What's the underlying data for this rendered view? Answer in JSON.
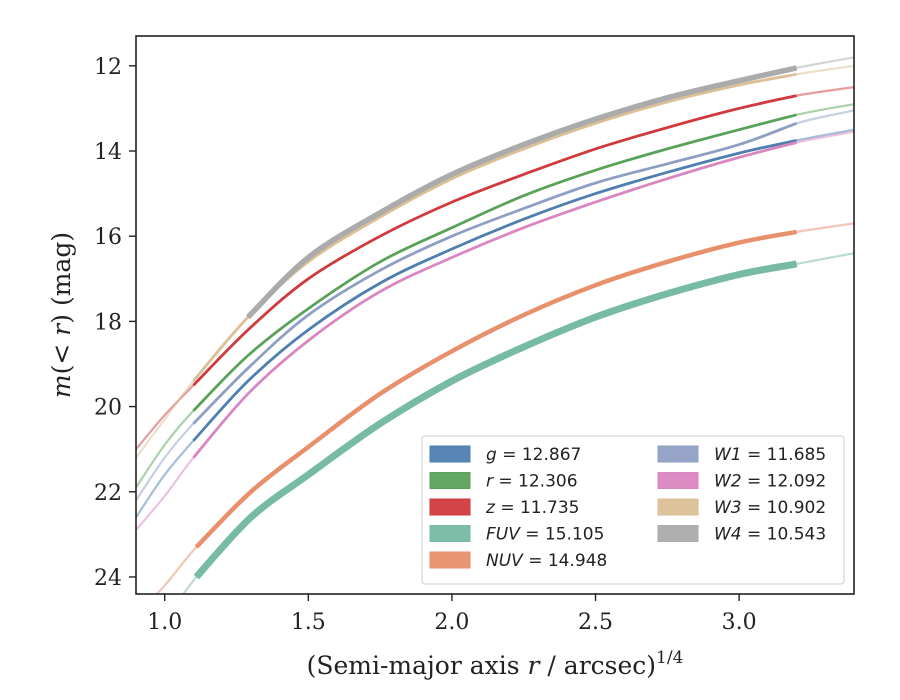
{
  "chart_data": {
    "type": "line",
    "xlabel": "(Semi-major axis r / arcsec)1/4",
    "ylabel": "m(< r) (mag)",
    "xlim": [
      0.9,
      3.4
    ],
    "ylim": [
      24.4,
      11.3
    ],
    "y_inverted": true,
    "grid": false,
    "legend_placement": "lower-right",
    "xticks": [
      "1.0",
      "1.5",
      "2.0",
      "2.5",
      "3.0"
    ],
    "xtick_values": [
      1.0,
      1.5,
      2.0,
      2.5,
      3.0
    ],
    "yticks": [
      "12",
      "14",
      "16",
      "18",
      "20",
      "22",
      "24"
    ],
    "ytick_values": [
      12,
      14,
      16,
      18,
      20,
      22,
      24
    ],
    "series": [
      {
        "name": "g = 12.867",
        "band": "g",
        "mag": "12.867",
        "color": "#4e7fb0",
        "x_start": 0.9,
        "x_solid_start": 1.29,
        "x_solid_end": 3.2,
        "x_end": 3.4,
        "x": [
          0.9,
          1.0,
          1.1,
          1.29,
          1.5,
          1.75,
          2.0,
          2.25,
          2.5,
          2.75,
          3.0,
          3.2,
          3.4
        ],
        "y": [
          22.6,
          21.6,
          20.8,
          19.4,
          18.2,
          17.1,
          16.3,
          15.6,
          15.0,
          14.5,
          14.05,
          13.75,
          13.5
        ]
      },
      {
        "name": "r = 12.306",
        "band": "r",
        "mag": "12.306",
        "color": "#5aa25a",
        "x": [
          0.9,
          1.0,
          1.1,
          1.29,
          1.5,
          1.75,
          2.0,
          2.25,
          2.5,
          2.75,
          3.0,
          3.2,
          3.4
        ],
        "y": [
          21.9,
          20.9,
          20.1,
          18.8,
          17.7,
          16.6,
          15.8,
          15.05,
          14.45,
          13.95,
          13.5,
          13.15,
          12.9
        ]
      },
      {
        "name": "z = 11.735",
        "band": "z",
        "mag": "11.735",
        "color": "#d03a3e",
        "x": [
          0.9,
          1.0,
          1.1,
          1.29,
          1.5,
          1.75,
          2.0,
          2.25,
          2.5,
          2.75,
          3.0,
          3.2,
          3.4
        ],
        "y": [
          21.0,
          20.2,
          19.5,
          18.2,
          17.0,
          16.0,
          15.2,
          14.55,
          13.95,
          13.45,
          13.0,
          12.7,
          12.5
        ]
      },
      {
        "name": "FUV = 15.105",
        "band": "FUV",
        "mag": "15.105",
        "color": "#77bba3",
        "x": [
          0.9,
          1.0,
          1.11,
          1.3,
          1.5,
          1.75,
          2.0,
          2.25,
          2.5,
          2.75,
          3.0,
          3.2,
          3.4
        ],
        "y": [
          25.6,
          25.0,
          24.0,
          22.6,
          21.6,
          20.4,
          19.4,
          18.6,
          17.9,
          17.35,
          16.9,
          16.65,
          16.4
        ]
      },
      {
        "name": "NUV = 14.948",
        "band": "NUV",
        "mag": "14.948",
        "color": "#e8906c",
        "x": [
          0.9,
          1.0,
          1.11,
          1.3,
          1.5,
          1.75,
          2.0,
          2.25,
          2.5,
          2.75,
          3.0,
          3.2,
          3.4
        ],
        "y": [
          24.9,
          24.2,
          23.3,
          22.0,
          20.95,
          19.7,
          18.7,
          17.85,
          17.15,
          16.6,
          16.15,
          15.9,
          15.7
        ]
      },
      {
        "name": "W1 = 11.685",
        "band": "W1",
        "mag": "11.685",
        "color": "#8f9fc4",
        "x": [
          0.9,
          1.0,
          1.1,
          1.29,
          1.5,
          1.75,
          2.0,
          2.25,
          2.5,
          2.75,
          3.0,
          3.2,
          3.4
        ],
        "y": [
          22.2,
          21.2,
          20.4,
          19.1,
          17.85,
          16.8,
          16.0,
          15.35,
          14.75,
          14.3,
          13.85,
          13.35,
          13.05
        ]
      },
      {
        "name": "W2 = 12.092",
        "band": "W2",
        "mag": "12.092",
        "color": "#da86c0",
        "x": [
          0.9,
          1.0,
          1.1,
          1.29,
          1.5,
          1.75,
          2.0,
          2.25,
          2.5,
          2.75,
          3.0,
          3.2,
          3.4
        ],
        "y": [
          22.9,
          22.1,
          21.2,
          19.7,
          18.45,
          17.3,
          16.5,
          15.8,
          15.2,
          14.65,
          14.15,
          13.8,
          13.55
        ]
      },
      {
        "name": "W3 = 10.902",
        "band": "W3",
        "mag": "10.902",
        "color": "#dcbf95",
        "x": [
          0.9,
          1.0,
          1.1,
          1.29,
          1.5,
          1.75,
          2.0,
          2.25,
          2.5,
          2.75,
          3.0,
          3.2,
          3.4
        ],
        "y": [
          21.2,
          20.3,
          19.4,
          17.9,
          16.6,
          15.55,
          14.65,
          13.95,
          13.35,
          12.85,
          12.45,
          12.2,
          12.0
        ]
      },
      {
        "name": "W4 = 10.543",
        "band": "W4",
        "mag": "10.543",
        "color": "#ababab",
        "x": [
          1.29,
          1.5,
          1.75,
          2.0,
          2.25,
          2.5,
          2.75,
          3.0,
          3.2,
          3.4
        ],
        "y": [
          17.9,
          16.5,
          15.45,
          14.55,
          13.85,
          13.25,
          12.75,
          12.35,
          12.05,
          11.8
        ]
      }
    ],
    "legend_columns": [
      [
        "g",
        "r",
        "z",
        "FUV",
        "NUV"
      ],
      [
        "W1",
        "W2",
        "W3",
        "W4"
      ]
    ]
  }
}
